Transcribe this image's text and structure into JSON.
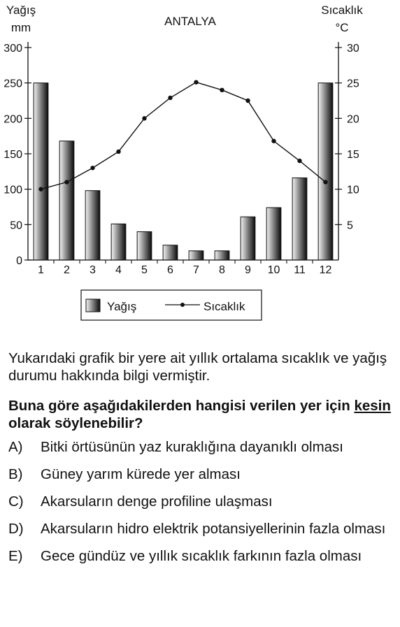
{
  "chart_data": {
    "type": "bar+line",
    "title": "ANTALYA",
    "left_axis_label": [
      "Yağış",
      "mm"
    ],
    "right_axis_label": [
      "Sıcaklık",
      "°C"
    ],
    "categories": [
      "1",
      "2",
      "3",
      "4",
      "5",
      "6",
      "7",
      "8",
      "9",
      "10",
      "11",
      "12"
    ],
    "left_ticks": [
      0,
      50,
      100,
      150,
      200,
      250,
      300
    ],
    "right_ticks": [
      5,
      10,
      15,
      20,
      25,
      30
    ],
    "ylim_left": [
      0,
      300
    ],
    "ylim_right": [
      0,
      30
    ],
    "series": [
      {
        "name": "Yağış",
        "kind": "bar",
        "axis": "left",
        "values": [
          250,
          168,
          98,
          51,
          40,
          21,
          13,
          13,
          61,
          74,
          116,
          250
        ]
      },
      {
        "name": "Sıcaklık",
        "kind": "line",
        "axis": "right",
        "values": [
          10,
          11,
          13,
          15.3,
          20,
          22.9,
          25.1,
          24,
          22.5,
          16.8,
          14,
          11
        ]
      }
    ],
    "legend": {
      "bar_label": "Yağış",
      "line_label": "Sıcaklık"
    },
    "legend_position": "bottom"
  },
  "question": {
    "intro": "Yukarıdaki grafik bir yere ait yıllık ortalama sıcaklık ve yağış durumu hakkında bilgi vermiştir.",
    "prompt_before": "Buna göre aşağıdakilerden hangisi verilen yer için ",
    "prompt_emph": "kesin",
    "prompt_after": " olarak söylenebilir?",
    "options": [
      {
        "letter": "A)",
        "text": "Bitki örtüsünün yaz kuraklığına dayanıklı olması"
      },
      {
        "letter": "B)",
        "text": "Güney yarım kürede yer alması"
      },
      {
        "letter": "C)",
        "text": "Akarsuların denge profiline ulaşması"
      },
      {
        "letter": "D)",
        "text": "Akarsuların hidro elektrik potansiyellerinin fazla olması"
      },
      {
        "letter": "E)",
        "text": "Gece gündüz ve yıllık sıcaklık farkının fazla olması"
      }
    ]
  }
}
